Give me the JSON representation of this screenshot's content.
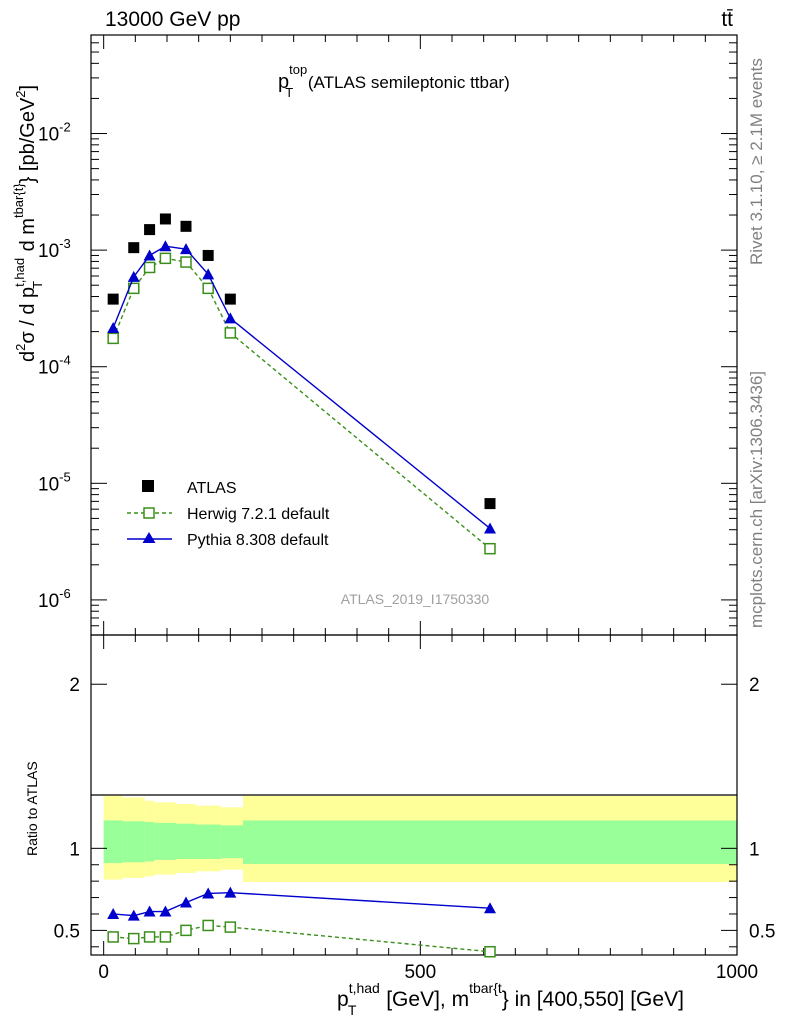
{
  "header": {
    "energy_label": "13000 GeV pp",
    "process_label": "tt̄"
  },
  "side_labels": {
    "rivet": "Rivet 3.1.10, ≥ 2.1M events",
    "mcplots": "mcplots.cern.ch [arXiv:1306.3436]"
  },
  "chart_data": [
    {
      "type": "scatter",
      "panel": "main",
      "title": {
        "main": "p",
        "sup": "top",
        "sub": "T",
        "rest": " (ATLAS semileptonic ttbar)"
      },
      "ylabel": {
        "prefix": "d",
        "sup2": "2",
        "sigma_part": "σ / d p",
        "sup_had": "t,had",
        "sub_T": "T",
        "d_m": " d m",
        "sup_tbar": "tbar{t}",
        "units": "} [pb/GeV",
        "sup_units": "2",
        "close": "]"
      },
      "yscale": "log",
      "ylim": [
        5e-07,
        0.07
      ],
      "xlim": [
        -20,
        1000
      ],
      "y_tick_labels": [
        {
          "base": "10",
          "exp": "-6",
          "value": 1e-06
        },
        {
          "base": "10",
          "exp": "-5",
          "value": 1e-05
        },
        {
          "base": "10",
          "exp": "-4",
          "value": 0.0001
        },
        {
          "base": "10",
          "exp": "-3",
          "value": 0.001
        },
        {
          "base": "10",
          "exp": "-2",
          "value": 0.01
        }
      ],
      "watermark": "ATLAS_2019_I1750330",
      "legend_placement": "bottom-left",
      "series": [
        {
          "name": "ATLAS",
          "marker": "filled-square",
          "color": "#000000",
          "x": [
            15,
            47.5,
            72.5,
            97.5,
            130,
            165,
            200,
            610
          ],
          "values": [
            0.00038,
            0.00105,
            0.0015,
            0.00185,
            0.0016,
            0.0009,
            0.00038,
            6.7e-06
          ]
        },
        {
          "name": "Herwig 7.2.1 default",
          "marker": "open-square",
          "line": "dashed",
          "color": "#3a8f1a",
          "x": [
            15,
            47.5,
            72.5,
            97.5,
            130,
            165,
            200,
            610
          ],
          "values": [
            0.000175,
            0.00047,
            0.00071,
            0.00085,
            0.00079,
            0.00047,
            0.000195,
            2.75e-06
          ]
        },
        {
          "name": "Pythia 8.308 default",
          "marker": "filled-triangle",
          "line": "solid",
          "color": "#0000cc",
          "x": [
            15,
            47.5,
            72.5,
            97.5,
            130,
            165,
            200,
            610
          ],
          "values": [
            0.000215,
            0.00059,
            0.0009,
            0.00108,
            0.00102,
            0.00062,
            0.00026,
            4.1e-06
          ]
        }
      ]
    },
    {
      "type": "line",
      "panel": "ratio",
      "ylabel": "Ratio to ATLAS",
      "ylim": [
        0.35,
        2.3
      ],
      "xlim": [
        -20,
        1000
      ],
      "y_tick_labels": [
        "0.5",
        "1",
        "2"
      ],
      "x_tick_labels": [
        "0",
        "500",
        "1000"
      ],
      "xlabel": {
        "p": "p",
        "sup_had": "t,had",
        "sub_T": "T",
        "mid": " [GeV], m",
        "sup_tbar": "tbar{t",
        "rest": "} in [400,550] [GeV]"
      },
      "bands": {
        "edges": [
          0,
          30,
          65,
          80,
          115,
          145,
          185,
          220,
          1000
        ],
        "outer_low": [
          0.81,
          0.82,
          0.83,
          0.84,
          0.85,
          0.86,
          0.87,
          0.795
        ],
        "outer_high": [
          1.32,
          1.31,
          1.29,
          1.28,
          1.27,
          1.26,
          1.25,
          1.32
        ],
        "inner_low": [
          0.91,
          0.915,
          0.92,
          0.93,
          0.935,
          0.935,
          0.94,
          0.905
        ],
        "inner_high": [
          1.17,
          1.165,
          1.16,
          1.155,
          1.15,
          1.145,
          1.14,
          1.17
        ],
        "outer_color": "#ffff99",
        "inner_color": "#99ff99"
      },
      "series": [
        {
          "name": "Herwig 7.2.1 default",
          "color": "#3a8f1a",
          "x": [
            15,
            47.5,
            72.5,
            97.5,
            130,
            165,
            200,
            610
          ],
          "values": [
            0.46,
            0.45,
            0.46,
            0.46,
            0.5,
            0.53,
            0.52,
            0.37
          ]
        },
        {
          "name": "Pythia 8.308 default",
          "color": "#0000cc",
          "x": [
            15,
            47.5,
            72.5,
            97.5,
            130,
            165,
            200,
            610
          ],
          "values": [
            0.6,
            0.59,
            0.615,
            0.615,
            0.67,
            0.725,
            0.73,
            0.635
          ]
        }
      ]
    }
  ]
}
